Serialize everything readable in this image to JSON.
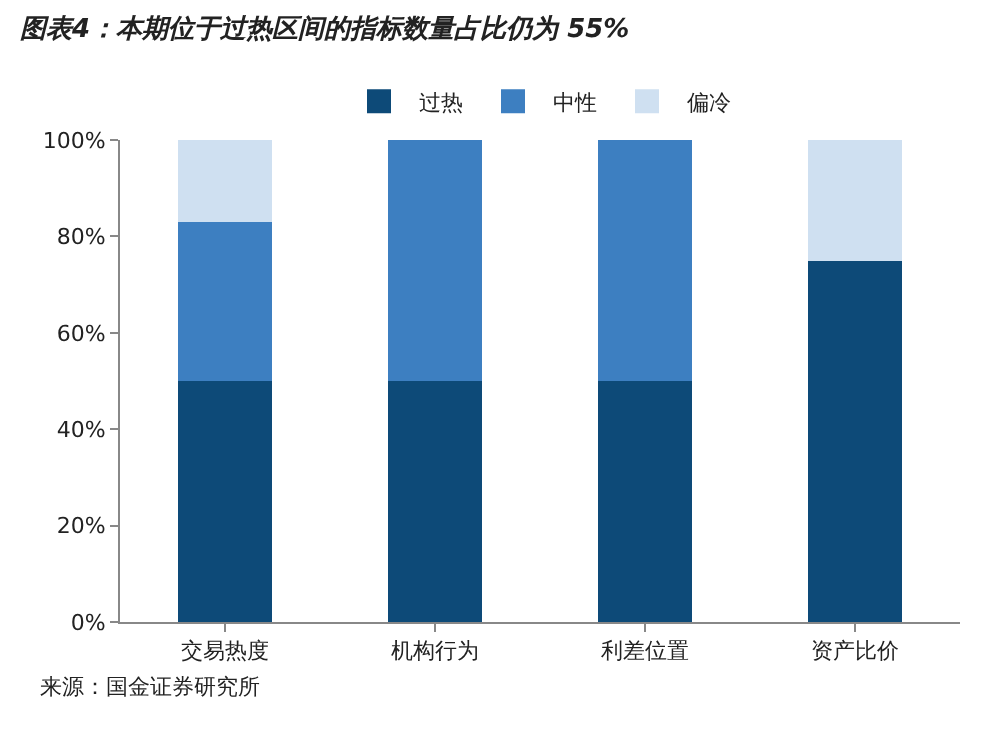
{
  "chart_data": {
    "type": "bar",
    "title": "图表4：本期位于过热区间的指标数量占比仍为 55%",
    "categories": [
      "交易热度",
      "机构行为",
      "利差位置",
      "资产比价"
    ],
    "stacked": true,
    "series": [
      {
        "name": "过热",
        "color": "#0d4a78",
        "values": [
          50,
          50,
          50,
          75
        ]
      },
      {
        "name": "中性",
        "color": "#3d7fc1",
        "values": [
          33,
          50,
          50,
          0
        ]
      },
      {
        "name": "偏冷",
        "color": "#cfe0f1",
        "values": [
          17,
          0,
          0,
          25
        ]
      }
    ],
    "ylim": [
      0,
      100
    ],
    "yticks": [
      {
        "value": 0,
        "label": "0%"
      },
      {
        "value": 20,
        "label": "20%"
      },
      {
        "value": 40,
        "label": "40%"
      },
      {
        "value": 60,
        "label": "60%"
      },
      {
        "value": 80,
        "label": "80%"
      },
      {
        "value": 100,
        "label": "100%"
      }
    ],
    "legend": "top",
    "annotations": [
      "来源：国金证券研究所"
    ]
  }
}
